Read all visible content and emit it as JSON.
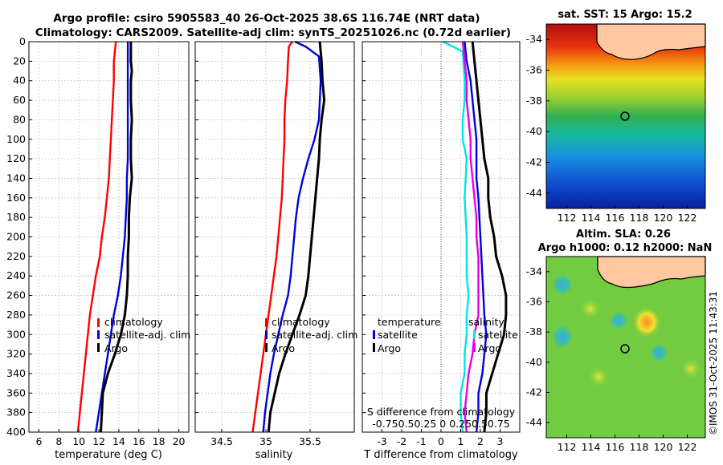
{
  "header": {
    "title_line1": "Argo profile: csiro 5905583_40 26-Oct-2025 38.6S 116.74E (NRT data)",
    "title_line2": "Climatology: CARS2009. Satellite-adj clim: synTS_20251026.nc (0.72d earlier)"
  },
  "watermark": "©IMOS 31-Oct-2025 11:43:31",
  "colors": {
    "climatology": "#ff0000",
    "satellite": "#0000dd",
    "argo": "#000000",
    "s_satellite": "#00e5e5",
    "s_argo": "#e600e6"
  },
  "chart_data": [
    {
      "id": "temperature",
      "type": "line",
      "xlabel": "temperature (deg C)",
      "ylabel": "depth",
      "xlim": [
        5,
        21
      ],
      "ylim": [
        0,
        400
      ],
      "xticks": [
        6,
        8,
        10,
        12,
        14,
        16,
        18,
        20
      ],
      "yticks": [
        0,
        20,
        40,
        60,
        80,
        100,
        120,
        140,
        160,
        180,
        200,
        220,
        240,
        260,
        280,
        300,
        320,
        340,
        360,
        380,
        400
      ],
      "legend": [
        "climatology",
        "satellite-adj. clim",
        "Argo"
      ],
      "series": [
        {
          "name": "climatology",
          "color": "#ff0000",
          "points": [
            [
              13.7,
              0
            ],
            [
              13.6,
              10
            ],
            [
              13.5,
              20
            ],
            [
              13.5,
              40
            ],
            [
              13.4,
              60
            ],
            [
              13.3,
              80
            ],
            [
              13.2,
              100
            ],
            [
              13.1,
              120
            ],
            [
              13.0,
              140
            ],
            [
              12.8,
              160
            ],
            [
              12.6,
              180
            ],
            [
              12.3,
              200
            ],
            [
              12.1,
              220
            ],
            [
              11.7,
              240
            ],
            [
              11.4,
              260
            ],
            [
              11.1,
              280
            ],
            [
              10.9,
              300
            ],
            [
              10.7,
              320
            ],
            [
              10.5,
              340
            ],
            [
              10.3,
              360
            ],
            [
              10.1,
              380
            ],
            [
              9.9,
              400
            ]
          ]
        },
        {
          "name": "satellite-adj. clim",
          "color": "#0000dd",
          "points": [
            [
              14.9,
              0
            ],
            [
              14.9,
              20
            ],
            [
              14.9,
              40
            ],
            [
              14.9,
              60
            ],
            [
              14.9,
              80
            ],
            [
              14.9,
              100
            ],
            [
              14.9,
              120
            ],
            [
              14.8,
              140
            ],
            [
              14.8,
              160
            ],
            [
              14.7,
              180
            ],
            [
              14.6,
              200
            ],
            [
              14.4,
              220
            ],
            [
              14.2,
              240
            ],
            [
              13.9,
              260
            ],
            [
              13.5,
              280
            ],
            [
              13.2,
              300
            ],
            [
              12.9,
              320
            ],
            [
              12.6,
              340
            ],
            [
              12.3,
              360
            ],
            [
              12.0,
              380
            ],
            [
              11.7,
              400
            ]
          ]
        },
        {
          "name": "Argo",
          "color": "#000000",
          "points": [
            [
              15.2,
              0
            ],
            [
              15.2,
              20
            ],
            [
              15.3,
              30
            ],
            [
              15.2,
              40
            ],
            [
              15.2,
              60
            ],
            [
              15.3,
              80
            ],
            [
              15.2,
              100
            ],
            [
              15.2,
              120
            ],
            [
              15.3,
              140
            ],
            [
              15.1,
              160
            ],
            [
              15.0,
              180
            ],
            [
              15.0,
              200
            ],
            [
              14.9,
              220
            ],
            [
              14.9,
              240
            ],
            [
              14.8,
              260
            ],
            [
              14.6,
              280
            ],
            [
              14.2,
              300
            ],
            [
              13.6,
              320
            ],
            [
              12.9,
              340
            ],
            [
              12.4,
              360
            ],
            [
              12.3,
              380
            ],
            [
              12.2,
              400
            ]
          ]
        }
      ]
    },
    {
      "id": "salinity",
      "type": "line",
      "xlabel": "salinity",
      "ylabel": "depth",
      "xlim": [
        34.2,
        36.0
      ],
      "ylim": [
        0,
        400
      ],
      "xticks": [
        34.5,
        35,
        35.5
      ],
      "xticklabels": [
        "34.5",
        "35",
        "35.5"
      ],
      "yticks": [
        0,
        20,
        40,
        60,
        80,
        100,
        120,
        140,
        160,
        180,
        200,
        220,
        240,
        260,
        280,
        300,
        320,
        340,
        360,
        380,
        400
      ],
      "legend": [
        "climatology",
        "satellite-adj. clim",
        "Argo"
      ],
      "series": [
        {
          "name": "climatology",
          "color": "#ff0000",
          "points": [
            [
              35.3,
              0
            ],
            [
              35.26,
              5
            ],
            [
              35.25,
              20
            ],
            [
              35.24,
              40
            ],
            [
              35.22,
              60
            ],
            [
              35.21,
              80
            ],
            [
              35.21,
              100
            ],
            [
              35.2,
              120
            ],
            [
              35.19,
              140
            ],
            [
              35.18,
              160
            ],
            [
              35.16,
              180
            ],
            [
              35.14,
              200
            ],
            [
              35.12,
              220
            ],
            [
              35.09,
              240
            ],
            [
              35.06,
              260
            ],
            [
              35.03,
              280
            ],
            [
              35.0,
              300
            ],
            [
              34.97,
              320
            ],
            [
              34.94,
              340
            ],
            [
              34.91,
              360
            ],
            [
              34.88,
              380
            ],
            [
              34.85,
              400
            ]
          ]
        },
        {
          "name": "satellite-adj. clim",
          "color": "#0000dd",
          "points": [
            [
              35.33,
              0
            ],
            [
              35.45,
              5
            ],
            [
              35.6,
              15
            ],
            [
              35.62,
              40
            ],
            [
              35.61,
              60
            ],
            [
              35.6,
              80
            ],
            [
              35.55,
              100
            ],
            [
              35.48,
              120
            ],
            [
              35.42,
              140
            ],
            [
              35.37,
              160
            ],
            [
              35.34,
              180
            ],
            [
              35.32,
              200
            ],
            [
              35.3,
              220
            ],
            [
              35.28,
              240
            ],
            [
              35.25,
              260
            ],
            [
              35.19,
              280
            ],
            [
              35.14,
              300
            ],
            [
              35.09,
              320
            ],
            [
              35.05,
              340
            ],
            [
              35.02,
              360
            ],
            [
              34.99,
              380
            ],
            [
              34.97,
              400
            ]
          ]
        },
        {
          "name": "Argo",
          "color": "#000000",
          "points": [
            [
              35.61,
              0
            ],
            [
              35.63,
              20
            ],
            [
              35.64,
              40
            ],
            [
              35.66,
              60
            ],
            [
              35.63,
              80
            ],
            [
              35.61,
              100
            ],
            [
              35.6,
              120
            ],
            [
              35.58,
              140
            ],
            [
              35.56,
              160
            ],
            [
              35.54,
              180
            ],
            [
              35.52,
              200
            ],
            [
              35.5,
              220
            ],
            [
              35.48,
              240
            ],
            [
              35.45,
              260
            ],
            [
              35.38,
              280
            ],
            [
              35.3,
              300
            ],
            [
              35.22,
              320
            ],
            [
              35.15,
              340
            ],
            [
              35.1,
              360
            ],
            [
              35.05,
              380
            ],
            [
              35.03,
              400
            ]
          ]
        }
      ]
    },
    {
      "id": "difference",
      "type": "line",
      "xlabel": "T difference from climatology",
      "top_label": "S difference from climatology",
      "ylabel": "depth",
      "xlim": [
        -4,
        4
      ],
      "ylim": [
        0,
        400
      ],
      "xticks": [
        -3,
        -2,
        -1,
        0,
        1,
        2,
        3
      ],
      "s_xticks": [
        -0.75,
        -0.5,
        0.25,
        0,
        0.25,
        0.5,
        0.75
      ],
      "s_tick_text": "-0.750.50.25  0  0.250.50.75",
      "yticks": [
        0,
        20,
        40,
        60,
        80,
        100,
        120,
        140,
        160,
        180,
        200,
        220,
        240,
        260,
        280,
        300,
        320,
        340,
        360,
        380,
        400
      ],
      "legend_temperature": [
        "temperature",
        "satellite",
        "Argo"
      ],
      "legend_salinity": [
        "salinity",
        "satellite",
        "Argo"
      ],
      "series": [
        {
          "name": "T satellite",
          "color": "#0000dd",
          "points": [
            [
              1.2,
              0
            ],
            [
              1.3,
              20
            ],
            [
              1.5,
              40
            ],
            [
              1.6,
              60
            ],
            [
              1.7,
              80
            ],
            [
              1.8,
              100
            ],
            [
              1.8,
              140
            ],
            [
              1.9,
              160
            ],
            [
              2.0,
              200
            ],
            [
              2.1,
              240
            ],
            [
              2.2,
              280
            ],
            [
              2.3,
              300
            ],
            [
              2.2,
              320
            ],
            [
              2.1,
              340
            ],
            [
              1.9,
              360
            ],
            [
              1.9,
              380
            ],
            [
              1.8,
              400
            ]
          ]
        },
        {
          "name": "T Argo",
          "color": "#000000",
          "points": [
            [
              1.6,
              0
            ],
            [
              1.7,
              20
            ],
            [
              1.8,
              40
            ],
            [
              1.9,
              60
            ],
            [
              2.0,
              80
            ],
            [
              2.1,
              100
            ],
            [
              2.2,
              120
            ],
            [
              2.4,
              140
            ],
            [
              2.4,
              160
            ],
            [
              2.5,
              180
            ],
            [
              2.7,
              200
            ],
            [
              2.8,
              220
            ],
            [
              3.1,
              240
            ],
            [
              3.3,
              260
            ],
            [
              3.3,
              280
            ],
            [
              3.2,
              300
            ],
            [
              2.9,
              320
            ],
            [
              2.6,
              340
            ],
            [
              2.3,
              360
            ],
            [
              2.3,
              380
            ],
            [
              2.2,
              400
            ]
          ]
        },
        {
          "name": "S satellite",
          "color": "#00e5e5",
          "points": [
            [
              0.1,
              0
            ],
            [
              0.6,
              5
            ],
            [
              1.1,
              10
            ],
            [
              1.2,
              40
            ],
            [
              1.2,
              60
            ],
            [
              1.1,
              80
            ],
            [
              1.1,
              100
            ],
            [
              1.3,
              120
            ],
            [
              1.2,
              160
            ],
            [
              1.3,
              200
            ],
            [
              1.3,
              240
            ],
            [
              1.4,
              260
            ],
            [
              1.3,
              280
            ],
            [
              1.3,
              300
            ],
            [
              1.2,
              320
            ],
            [
              1.2,
              340
            ],
            [
              1.0,
              360
            ],
            [
              1.0,
              380
            ],
            [
              1.1,
              400
            ]
          ]
        },
        {
          "name": "S Argo",
          "color": "#e600e6",
          "points": [
            [
              1.1,
              0
            ],
            [
              1.2,
              20
            ],
            [
              1.3,
              40
            ],
            [
              1.3,
              60
            ],
            [
              1.4,
              80
            ],
            [
              1.5,
              100
            ],
            [
              1.5,
              120
            ],
            [
              1.6,
              140
            ],
            [
              1.7,
              160
            ],
            [
              1.8,
              180
            ],
            [
              1.8,
              200
            ],
            [
              1.9,
              220
            ],
            [
              1.9,
              240
            ],
            [
              1.9,
              260
            ],
            [
              1.9,
              280
            ],
            [
              1.7,
              300
            ],
            [
              1.6,
              320
            ],
            [
              1.4,
              340
            ],
            [
              1.3,
              360
            ],
            [
              1.2,
              380
            ],
            [
              1.3,
              400
            ]
          ]
        }
      ]
    },
    {
      "id": "sst_map",
      "type": "heatmap",
      "title": "sat. SST: 15 Argo: 15.2",
      "xticks": [
        112,
        114,
        116,
        118,
        120,
        122
      ],
      "yticks": [
        -34,
        -36,
        -38,
        -40,
        -42,
        -44
      ],
      "xlim": [
        110.3,
        123.5
      ],
      "ylim": [
        -45,
        -33
      ],
      "argo_position": [
        116.74,
        -38.6
      ]
    },
    {
      "id": "sla_map",
      "type": "heatmap",
      "title_line1": "Altim. SLA: 0.26",
      "title_line2": "Argo h1000: 0.12 h2000: NaN",
      "xticks": [
        112,
        114,
        116,
        118,
        120,
        122
      ],
      "yticks": [
        -34,
        -36,
        -38,
        -40,
        -42,
        -44
      ],
      "xlim": [
        110.3,
        123.5
      ],
      "ylim": [
        -45,
        -33
      ],
      "argo_position": [
        116.74,
        -38.6
      ]
    }
  ]
}
